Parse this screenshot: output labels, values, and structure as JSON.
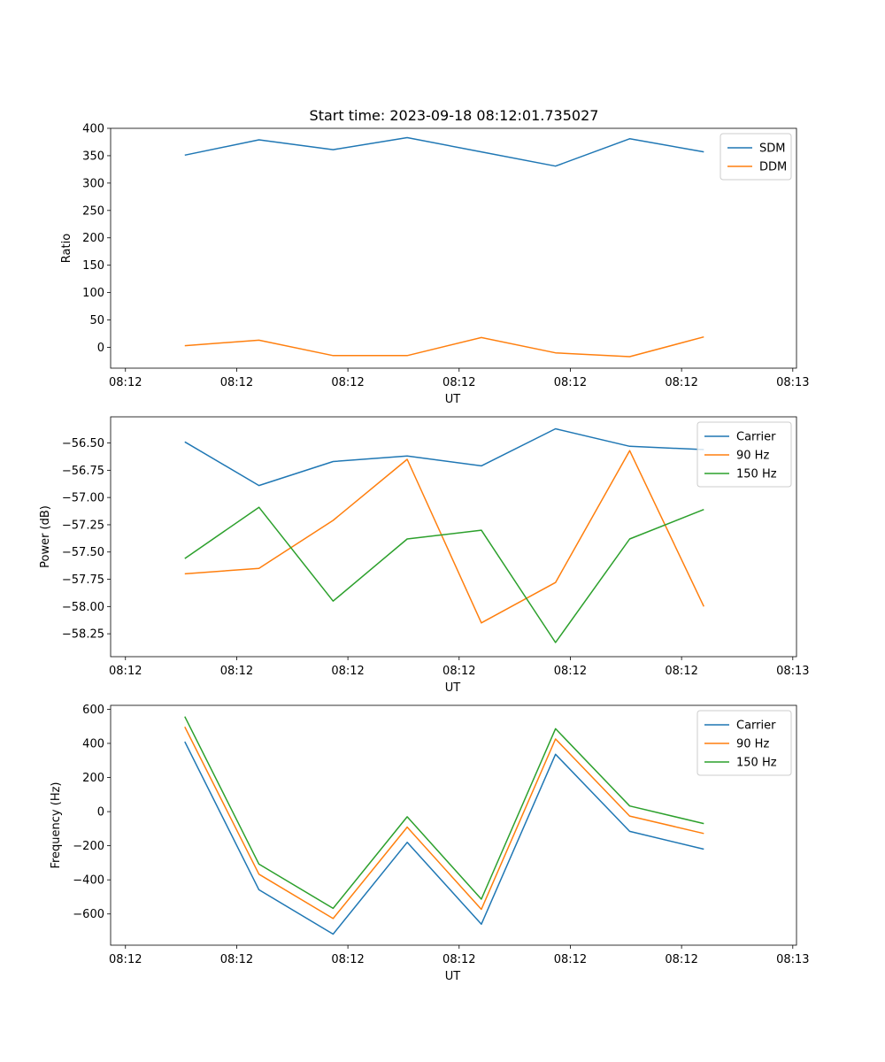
{
  "figure_title": "Start time: 2023-09-18 08:12:01.735027",
  "colors": {
    "blue": "#1f77b4",
    "orange": "#ff7f0e",
    "green": "#2ca02c",
    "axis": "#000000",
    "legend_border": "#cccccc"
  },
  "chart_data": [
    {
      "type": "line",
      "title": "Start time: 2023-09-18 08:12:01.735027",
      "xlabel": "UT",
      "ylabel": "Ratio",
      "xlim": [
        0.0,
        9.25
      ],
      "ylim": [
        -38,
        400
      ],
      "x_ticks": [
        0.2,
        1.7,
        3.2,
        4.7,
        6.2,
        7.7,
        9.2
      ],
      "x_tick_labels": [
        "08:12",
        "08:12",
        "08:12",
        "08:12",
        "08:12",
        "08:12",
        "08:13"
      ],
      "y_ticks": [
        0,
        50,
        100,
        150,
        200,
        250,
        300,
        350,
        400
      ],
      "y_tick_labels": [
        "0",
        "50",
        "100",
        "150",
        "200",
        "250",
        "300",
        "350",
        "400"
      ],
      "legend_position": "top-right",
      "x": [
        1,
        2,
        3,
        4,
        5,
        6,
        7,
        8
      ],
      "series": [
        {
          "name": "SDM",
          "color": "#1f77b4",
          "values": [
            351,
            379,
            361,
            383,
            357,
            331,
            381,
            357
          ]
        },
        {
          "name": "DDM",
          "color": "#ff7f0e",
          "values": [
            3,
            13,
            -15,
            -15,
            18,
            -10,
            -17,
            19
          ]
        }
      ]
    },
    {
      "type": "line",
      "title": "",
      "xlabel": "UT",
      "ylabel": "Power (dB)",
      "xlim": [
        0.0,
        9.25
      ],
      "ylim": [
        -58.46,
        -56.26
      ],
      "x_ticks": [
        0.2,
        1.7,
        3.2,
        4.7,
        6.2,
        7.7,
        9.2
      ],
      "x_tick_labels": [
        "08:12",
        "08:12",
        "08:12",
        "08:12",
        "08:12",
        "08:12",
        "08:13"
      ],
      "y_ticks": [
        -58.25,
        -58.0,
        -57.75,
        -57.5,
        -57.25,
        -57.0,
        -56.75,
        -56.5
      ],
      "y_tick_labels": [
        "−58.25",
        "−58.00",
        "−57.75",
        "−57.50",
        "−57.25",
        "−57.00",
        "−56.75",
        "−56.50"
      ],
      "legend_position": "top-right",
      "x": [
        1,
        2,
        3,
        4,
        5,
        6,
        7,
        8
      ],
      "series": [
        {
          "name": "Carrier",
          "color": "#1f77b4",
          "values": [
            -56.49,
            -56.89,
            -56.67,
            -56.62,
            -56.71,
            -56.37,
            -56.53,
            -56.56
          ]
        },
        {
          "name": "90 Hz",
          "color": "#ff7f0e",
          "values": [
            -57.7,
            -57.65,
            -57.21,
            -56.65,
            -58.15,
            -57.78,
            -56.57,
            -58.0
          ]
        },
        {
          "name": "150 Hz",
          "color": "#2ca02c",
          "values": [
            -57.56,
            -57.09,
            -57.95,
            -57.38,
            -57.3,
            -58.33,
            -57.38,
            -57.11
          ]
        }
      ]
    },
    {
      "type": "line",
      "title": "",
      "xlabel": "UT",
      "ylabel": "Frequency (Hz)",
      "xlim": [
        0.0,
        9.25
      ],
      "ylim": [
        -783,
        623
      ],
      "x_ticks": [
        0.2,
        1.7,
        3.2,
        4.7,
        6.2,
        7.7,
        9.2
      ],
      "x_tick_labels": [
        "08:12",
        "08:12",
        "08:12",
        "08:12",
        "08:12",
        "08:12",
        "08:13"
      ],
      "y_ticks": [
        -600,
        -400,
        -200,
        0,
        200,
        400,
        600
      ],
      "y_tick_labels": [
        "−600",
        "−400",
        "−200",
        "0",
        "200",
        "400",
        "600"
      ],
      "legend_position": "top-right",
      "x": [
        1,
        2,
        3,
        4,
        5,
        6,
        7,
        8
      ],
      "series": [
        {
          "name": "Carrier",
          "color": "#1f77b4",
          "values": [
            410,
            -458,
            -718,
            -180,
            -660,
            336,
            -116,
            -220
          ]
        },
        {
          "name": "90 Hz",
          "color": "#ff7f0e",
          "values": [
            497,
            -367,
            -627,
            -91,
            -573,
            426,
            -26,
            -128
          ]
        },
        {
          "name": "150 Hz",
          "color": "#2ca02c",
          "values": [
            557,
            -308,
            -567,
            -30,
            -513,
            486,
            33,
            -70
          ]
        }
      ]
    }
  ]
}
